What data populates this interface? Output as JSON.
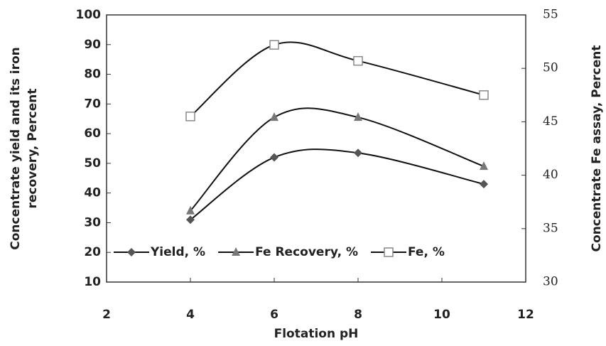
{
  "chart_data": {
    "type": "line",
    "xlabel": "Flotation pH",
    "ylabel": [
      "Concentrate yield and its iron",
      "recovery, Percent"
    ],
    "y2label": "Concentrate Fe assay, Percent",
    "x": [
      4,
      6,
      8,
      11
    ],
    "series": [
      {
        "name": "Yield, %",
        "color": "#555555",
        "marker": "diamond",
        "values": [
          31,
          52,
          53.5,
          43
        ]
      },
      {
        "name": "Fe Recovery, %",
        "color": "#777777",
        "marker": "triangle",
        "values": [
          34,
          65.5,
          65.5,
          49
        ]
      },
      {
        "name": "Fe, %",
        "color": "#888888",
        "marker": "square",
        "axis": "y2",
        "values": [
          45.5,
          52.2,
          50.7,
          47.5
        ]
      }
    ],
    "xlim": [
      2,
      12
    ],
    "xticks": [
      2,
      4,
      6,
      8,
      10,
      12
    ],
    "ylim": [
      10,
      100
    ],
    "yticks": [
      10,
      20,
      30,
      40,
      50,
      60,
      70,
      80,
      90,
      100
    ],
    "y2lim": [
      30,
      55
    ],
    "y2ticks": [
      30,
      35,
      40,
      45,
      50,
      55
    ],
    "grid": false,
    "legend": "bottom-left"
  }
}
